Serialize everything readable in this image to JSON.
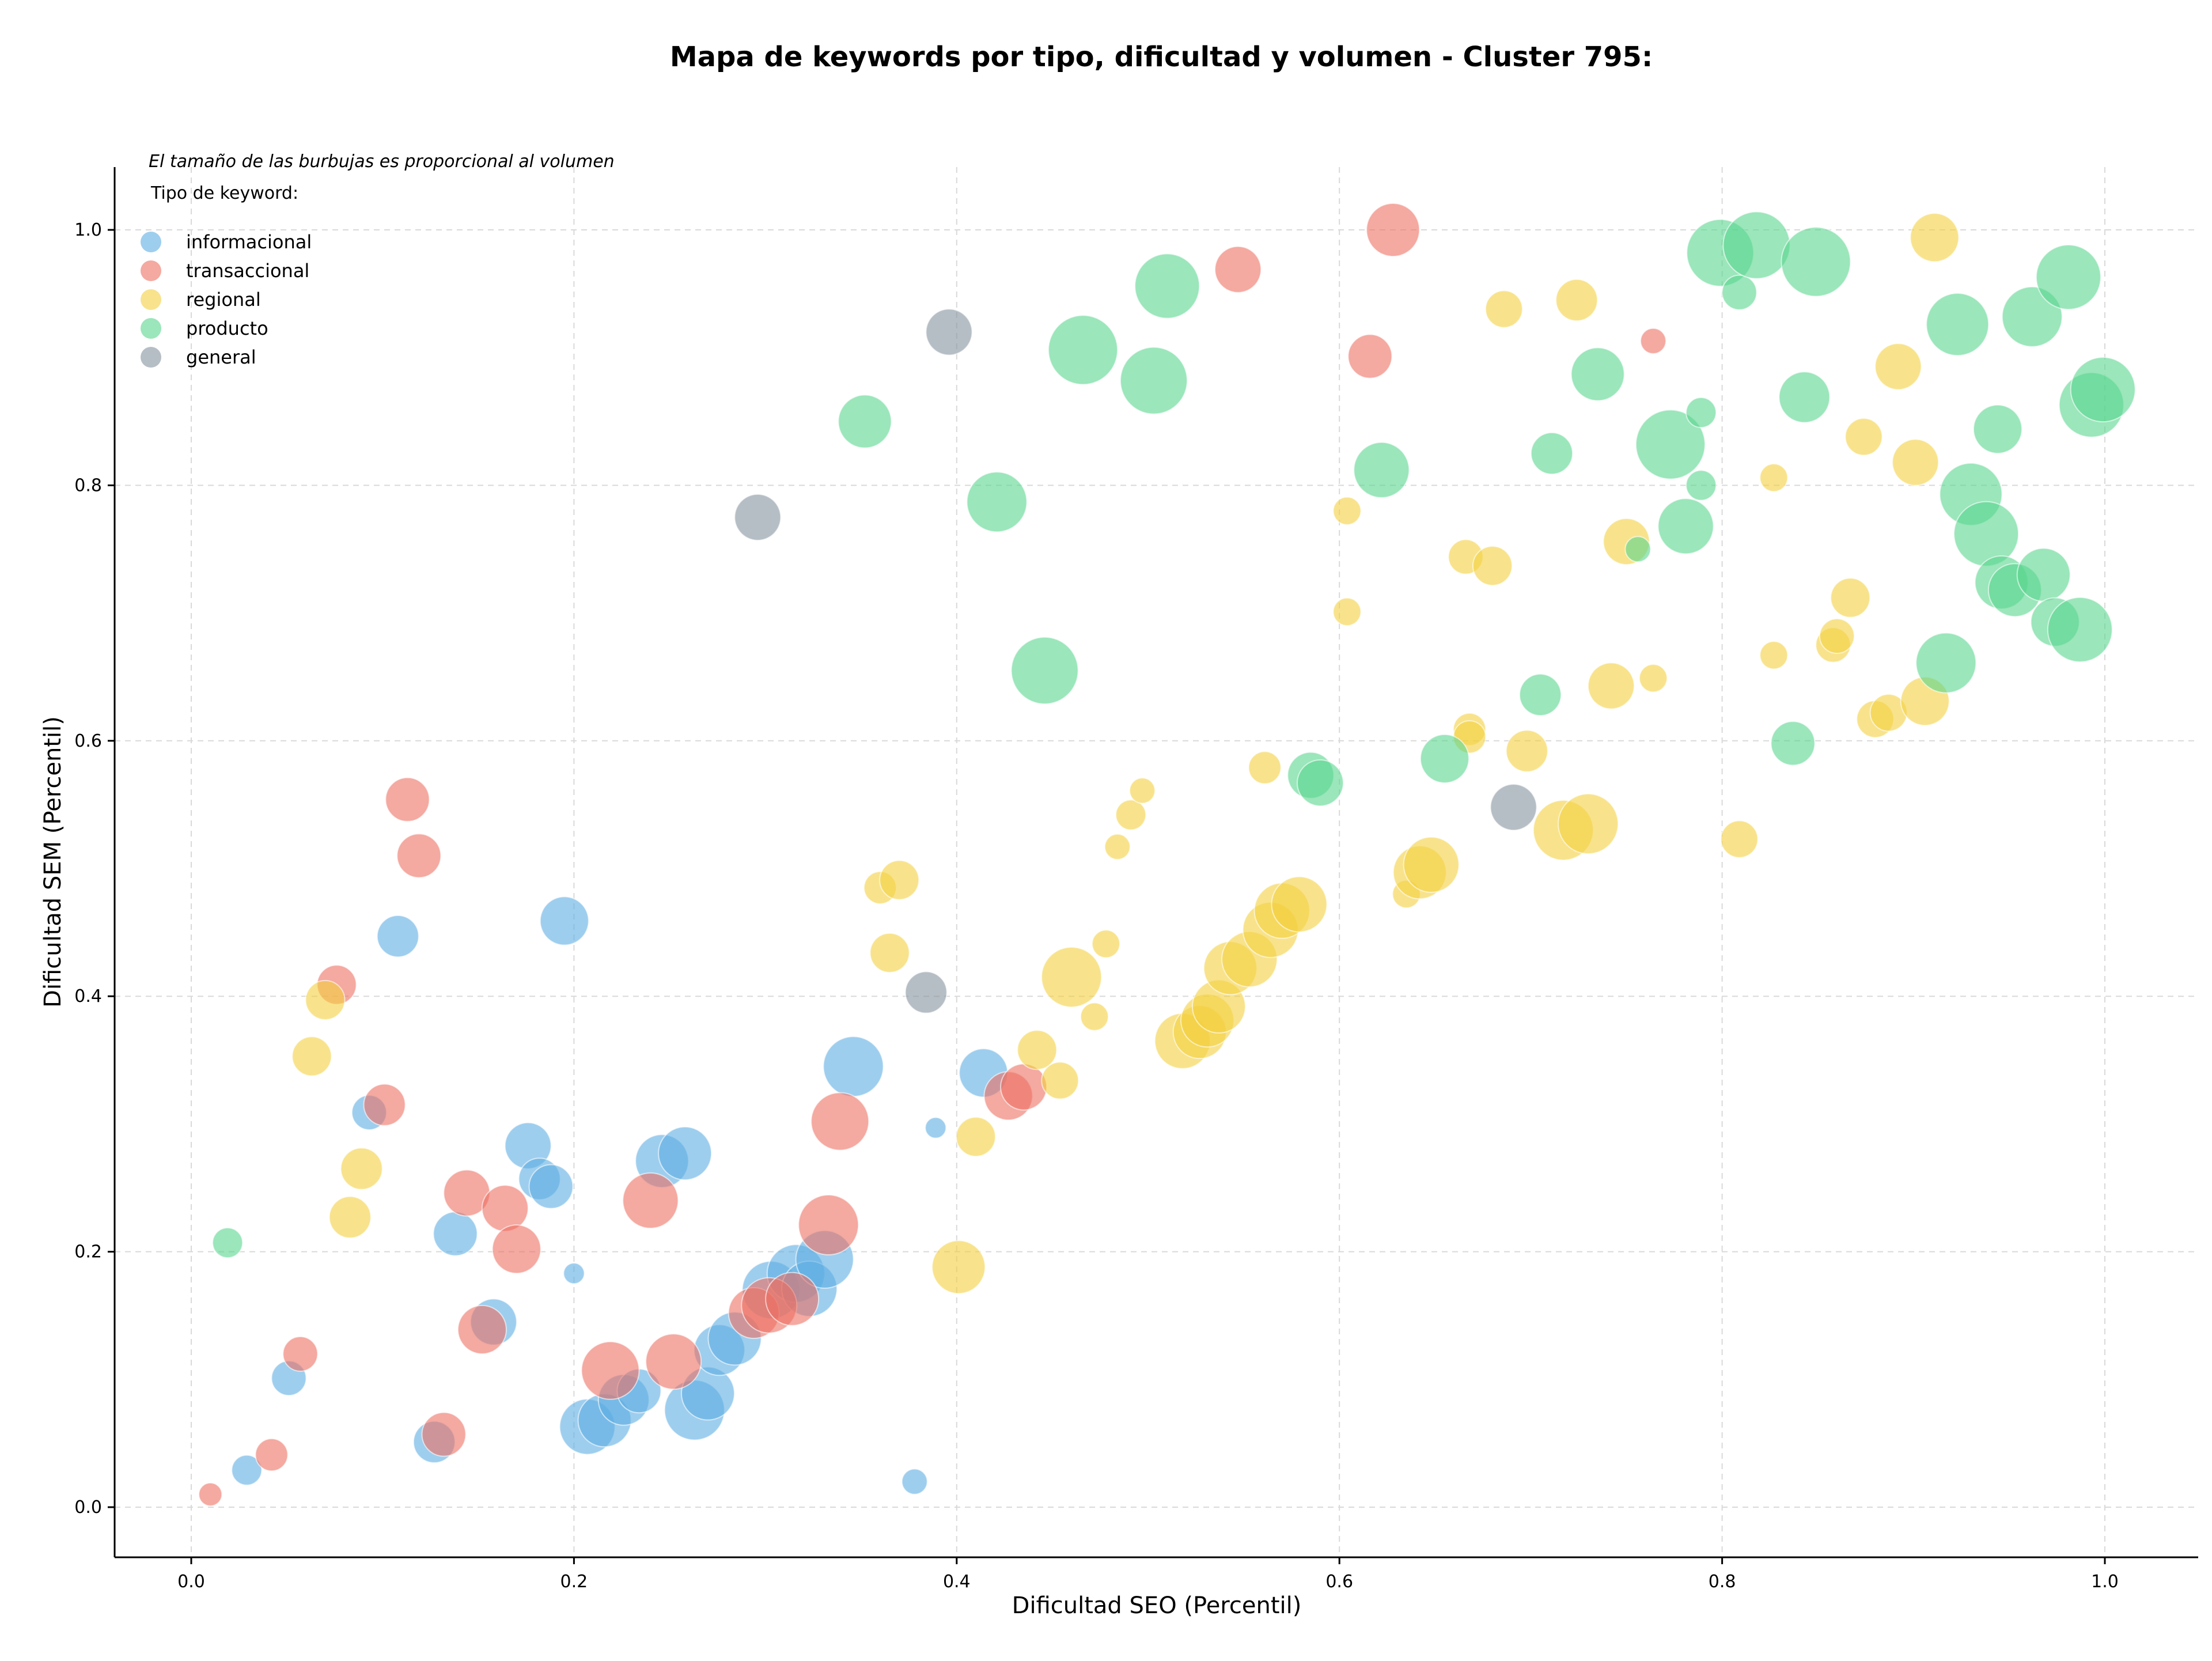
{
  "chart_data": {
    "type": "scatter",
    "title": "Mapa de keywords por tipo, dificultad y volumen - Cluster 795:",
    "xlabel": "Dificultad SEO (Percentil)",
    "ylabel": "Dificultad SEM (Percentil)",
    "xlim": [
      -0.04,
      1.05
    ],
    "ylim": [
      -0.04,
      1.05
    ],
    "xticks": [
      "0.0",
      "0.2",
      "0.4",
      "0.6",
      "0.8",
      "1.0"
    ],
    "yticks": [
      "0.0",
      "0.2",
      "0.4",
      "0.6",
      "0.8",
      "1.0"
    ],
    "grid": true,
    "legend_position": "top-left",
    "size_note": "El tamaño de las burbujas es proporcional al volumen",
    "legend_title": "Tipo de keyword:",
    "series": [
      {
        "name": "informacional",
        "color": "#5DADE2",
        "points": [
          [
            0.108,
            0.447,
            36
          ],
          [
            0.195,
            0.459,
            42
          ],
          [
            0.093,
            0.309,
            30
          ],
          [
            0.176,
            0.283,
            40
          ],
          [
            0.182,
            0.257,
            36
          ],
          [
            0.188,
            0.251,
            38
          ],
          [
            0.138,
            0.214,
            38
          ],
          [
            0.246,
            0.271,
            46
          ],
          [
            0.258,
            0.277,
            46
          ],
          [
            0.346,
            0.345,
            52
          ],
          [
            0.414,
            0.34,
            42
          ],
          [
            0.2,
            0.183,
            18
          ],
          [
            0.158,
            0.145,
            40
          ],
          [
            0.051,
            0.101,
            30
          ],
          [
            0.029,
            0.029,
            26
          ],
          [
            0.127,
            0.051,
            36
          ],
          [
            0.207,
            0.063,
            48
          ],
          [
            0.216,
            0.068,
            46
          ],
          [
            0.226,
            0.084,
            44
          ],
          [
            0.234,
            0.091,
            38
          ],
          [
            0.263,
            0.076,
            52
          ],
          [
            0.27,
            0.089,
            46
          ],
          [
            0.276,
            0.123,
            44
          ],
          [
            0.284,
            0.132,
            46
          ],
          [
            0.303,
            0.17,
            50
          ],
          [
            0.316,
            0.183,
            50
          ],
          [
            0.323,
            0.171,
            48
          ],
          [
            0.331,
            0.194,
            50
          ],
          [
            0.389,
            0.297,
            18
          ],
          [
            0.378,
            0.02,
            22
          ]
        ]
      },
      {
        "name": "transaccional",
        "color": "#EC7063",
        "points": [
          [
            0.113,
            0.554,
            38
          ],
          [
            0.119,
            0.51,
            38
          ],
          [
            0.076,
            0.409,
            34
          ],
          [
            0.101,
            0.315,
            36
          ],
          [
            0.144,
            0.246,
            40
          ],
          [
            0.164,
            0.234,
            40
          ],
          [
            0.17,
            0.202,
            42
          ],
          [
            0.24,
            0.24,
            48
          ],
          [
            0.339,
            0.302,
            50
          ],
          [
            0.427,
            0.322,
            42
          ],
          [
            0.435,
            0.329,
            40
          ],
          [
            0.333,
            0.221,
            52
          ],
          [
            0.152,
            0.139,
            42
          ],
          [
            0.057,
            0.12,
            30
          ],
          [
            0.042,
            0.041,
            28
          ],
          [
            0.132,
            0.057,
            38
          ],
          [
            0.219,
            0.107,
            50
          ],
          [
            0.252,
            0.114,
            48
          ],
          [
            0.294,
            0.152,
            44
          ],
          [
            0.302,
            0.158,
            48
          ],
          [
            0.314,
            0.163,
            46
          ],
          [
            0.628,
            1.0,
            46
          ],
          [
            0.547,
            0.969,
            40
          ],
          [
            0.616,
            0.901,
            38
          ],
          [
            0.764,
            0.913,
            22
          ],
          [
            0.01,
            0.01,
            20
          ]
        ]
      },
      {
        "name": "regional",
        "color": "#F4D03F",
        "points": [
          [
            0.07,
            0.397,
            34
          ],
          [
            0.063,
            0.353,
            34
          ],
          [
            0.089,
            0.265,
            36
          ],
          [
            0.083,
            0.227,
            36
          ],
          [
            0.36,
            0.485,
            28
          ],
          [
            0.37,
            0.491,
            34
          ],
          [
            0.365,
            0.434,
            34
          ],
          [
            0.442,
            0.358,
            34
          ],
          [
            0.454,
            0.334,
            32
          ],
          [
            0.401,
            0.188,
            46
          ],
          [
            0.41,
            0.29,
            34
          ],
          [
            0.46,
            0.415,
            52
          ],
          [
            0.472,
            0.384,
            24
          ],
          [
            0.478,
            0.441,
            24
          ],
          [
            0.484,
            0.517,
            22
          ],
          [
            0.491,
            0.542,
            26
          ],
          [
            0.497,
            0.561,
            22
          ],
          [
            0.518,
            0.365,
            48
          ],
          [
            0.527,
            0.372,
            46
          ],
          [
            0.531,
            0.381,
            46
          ],
          [
            0.537,
            0.392,
            46
          ],
          [
            0.543,
            0.422,
            46
          ],
          [
            0.553,
            0.429,
            48
          ],
          [
            0.564,
            0.452,
            48
          ],
          [
            0.57,
            0.467,
            48
          ],
          [
            0.579,
            0.472,
            48
          ],
          [
            0.561,
            0.579,
            28
          ],
          [
            0.604,
            0.78,
            24
          ],
          [
            0.604,
            0.701,
            24
          ],
          [
            0.635,
            0.48,
            24
          ],
          [
            0.642,
            0.497,
            46
          ],
          [
            0.648,
            0.503,
            48
          ],
          [
            0.668,
            0.609,
            28
          ],
          [
            0.668,
            0.603,
            28
          ],
          [
            0.666,
            0.744,
            30
          ],
          [
            0.68,
            0.737,
            34
          ],
          [
            0.686,
            0.938,
            32
          ],
          [
            0.698,
            0.592,
            36
          ],
          [
            0.717,
            0.53,
            52
          ],
          [
            0.73,
            0.535,
            52
          ],
          [
            0.724,
            0.945,
            36
          ],
          [
            0.742,
            0.643,
            40
          ],
          [
            0.75,
            0.756,
            40
          ],
          [
            0.764,
            0.649,
            24
          ],
          [
            0.809,
            0.523,
            32
          ],
          [
            0.827,
            0.806,
            24
          ],
          [
            0.827,
            0.667,
            24
          ],
          [
            0.858,
            0.675,
            30
          ],
          [
            0.86,
            0.682,
            30
          ],
          [
            0.867,
            0.712,
            34
          ],
          [
            0.874,
            0.838,
            32
          ],
          [
            0.88,
            0.617,
            32
          ],
          [
            0.887,
            0.622,
            32
          ],
          [
            0.892,
            0.893,
            40
          ],
          [
            0.901,
            0.818,
            40
          ],
          [
            0.906,
            0.631,
            42
          ],
          [
            0.911,
            0.994,
            42
          ]
        ]
      },
      {
        "name": "producto",
        "color": "#58D68D",
        "points": [
          [
            0.019,
            0.207,
            26
          ],
          [
            0.352,
            0.85,
            46
          ],
          [
            0.421,
            0.787,
            52
          ],
          [
            0.446,
            0.655,
            58
          ],
          [
            0.466,
            0.906,
            60
          ],
          [
            0.51,
            0.956,
            56
          ],
          [
            0.503,
            0.882,
            58
          ],
          [
            0.585,
            0.573,
            40
          ],
          [
            0.59,
            0.567,
            40
          ],
          [
            0.622,
            0.812,
            48
          ],
          [
            0.655,
            0.586,
            42
          ],
          [
            0.705,
            0.636,
            36
          ],
          [
            0.711,
            0.825,
            36
          ],
          [
            0.735,
            0.887,
            46
          ],
          [
            0.756,
            0.75,
            22
          ],
          [
            0.773,
            0.832,
            60
          ],
          [
            0.781,
            0.768,
            48
          ],
          [
            0.789,
            0.857,
            26
          ],
          [
            0.789,
            0.8,
            26
          ],
          [
            0.799,
            0.982,
            58
          ],
          [
            0.809,
            0.951,
            30
          ],
          [
            0.818,
            0.988,
            58
          ],
          [
            0.837,
            0.598,
            38
          ],
          [
            0.843,
            0.869,
            44
          ],
          [
            0.849,
            0.975,
            60
          ],
          [
            0.917,
            0.661,
            52
          ],
          [
            0.923,
            0.926,
            54
          ],
          [
            0.93,
            0.793,
            54
          ],
          [
            0.938,
            0.762,
            56
          ],
          [
            0.944,
            0.844,
            42
          ],
          [
            0.946,
            0.724,
            46
          ],
          [
            0.953,
            0.718,
            46
          ],
          [
            0.962,
            0.932,
            52
          ],
          [
            0.968,
            0.73,
            46
          ],
          [
            0.974,
            0.693,
            42
          ],
          [
            0.981,
            0.963,
            56
          ],
          [
            0.987,
            0.687,
            56
          ],
          [
            0.993,
            0.863,
            56
          ],
          [
            0.999,
            0.875,
            56
          ]
        ]
      },
      {
        "name": "general",
        "color": "#85929E",
        "points": [
          [
            0.396,
            0.92,
            40
          ],
          [
            0.296,
            0.775,
            40
          ],
          [
            0.384,
            0.403,
            36
          ],
          [
            0.691,
            0.548,
            40
          ]
        ]
      }
    ]
  }
}
